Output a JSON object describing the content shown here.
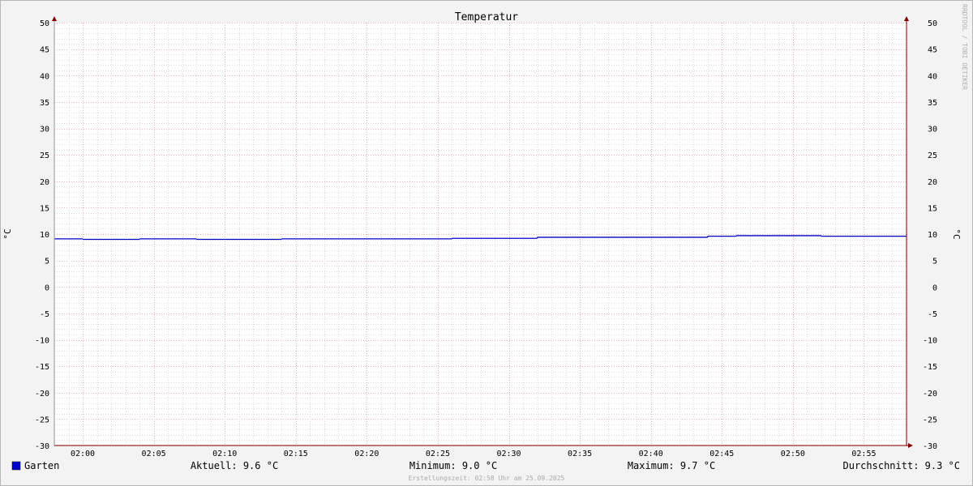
{
  "chart_data": {
    "type": "line",
    "title": "Temperatur",
    "ylabel": "°C",
    "ylabel_right": "°C",
    "ylim": [
      -30,
      50
    ],
    "yticks": [
      50,
      45,
      40,
      35,
      30,
      25,
      20,
      15,
      10,
      5,
      0,
      -5,
      -10,
      -15,
      -20,
      -25,
      -30
    ],
    "xlim": [
      "01:58",
      "02:58"
    ],
    "xticks": [
      "02:00",
      "02:05",
      "02:10",
      "02:15",
      "02:20",
      "02:25",
      "02:30",
      "02:35",
      "02:40",
      "02:45",
      "02:50",
      "02:55"
    ],
    "grid": true,
    "step": true,
    "series": [
      {
        "name": "Garten",
        "color": "#0000cc",
        "points": [
          {
            "x": "01:58",
            "y": 9.1
          },
          {
            "x": "02:00",
            "y": 9.0
          },
          {
            "x": "02:04",
            "y": 9.1
          },
          {
            "x": "02:08",
            "y": 9.0
          },
          {
            "x": "02:14",
            "y": 9.1
          },
          {
            "x": "02:26",
            "y": 9.2
          },
          {
            "x": "02:32",
            "y": 9.4
          },
          {
            "x": "02:44",
            "y": 9.6
          },
          {
            "x": "02:46",
            "y": 9.7
          },
          {
            "x": "02:52",
            "y": 9.6
          }
        ]
      }
    ],
    "legend": {
      "position": "bottom",
      "name": "Garten",
      "current": "Aktuell: 9.6 °C",
      "minimum": "Minimum: 9.0 °C",
      "maximum": "Maximum: 9.7 °C",
      "average": "Durchschnitt: 9.3 °C"
    },
    "footer": "Erstellungszeit: 02:58 Uhr am 25.09.2025",
    "watermark": "RRDTOOL / TOBI OETIKER"
  }
}
